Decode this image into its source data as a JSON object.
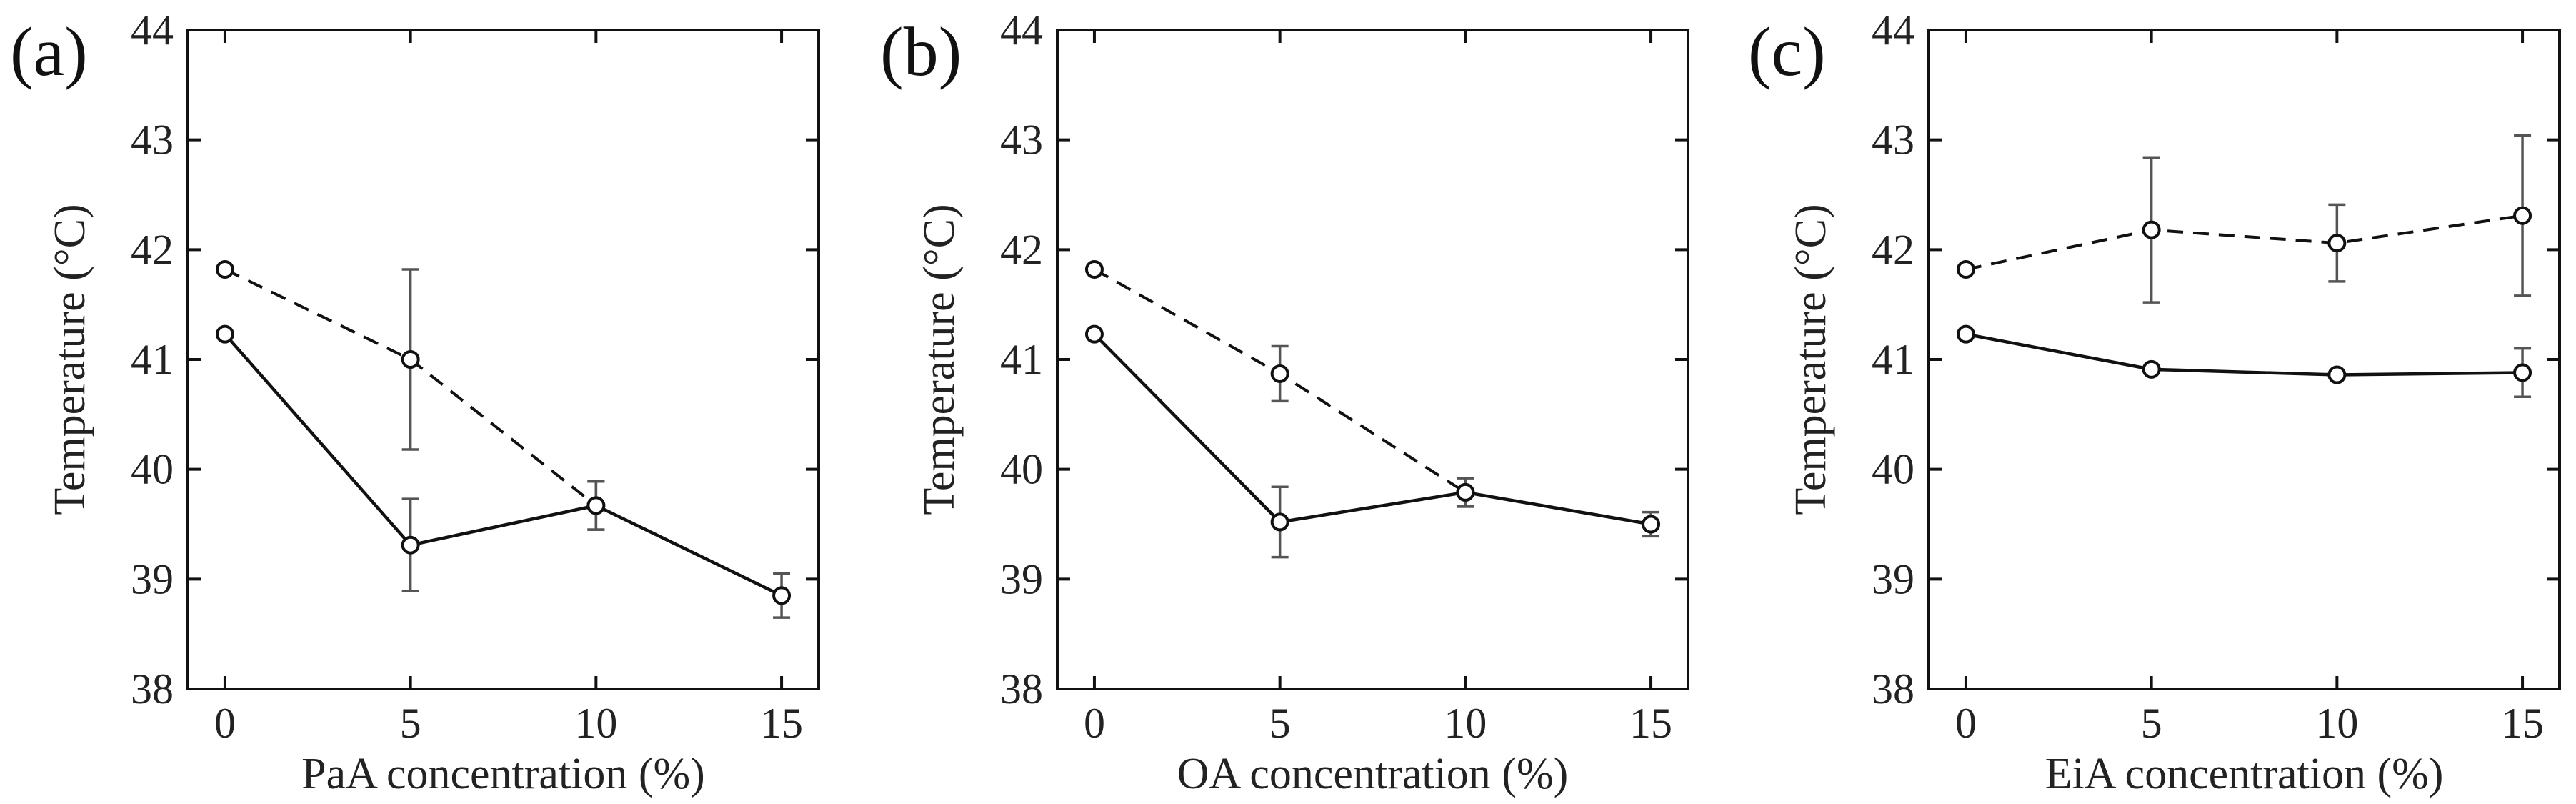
{
  "chart_data": [
    {
      "type": "line",
      "panel_label": "(a)",
      "xlabel": "PaA concentration (%)",
      "ylabel": "Temperature (°C)",
      "xlim": [
        -1,
        16
      ],
      "ylim": [
        38,
        44
      ],
      "xticks": [
        0,
        5,
        10,
        15
      ],
      "yticks": [
        38,
        39,
        40,
        41,
        42,
        43,
        44
      ],
      "x": [
        0,
        5,
        10,
        15
      ],
      "series": [
        {
          "name": "solid",
          "style": "solid",
          "x": [
            0,
            5,
            10,
            15
          ],
          "values": [
            41.23,
            39.31,
            39.67,
            38.85
          ],
          "errors": [
            0.03,
            0.42,
            0.22,
            0.2
          ]
        },
        {
          "name": "dashed",
          "style": "dashed",
          "x": [
            0,
            5,
            10
          ],
          "values": [
            41.82,
            41.0,
            39.67
          ],
          "errors": [
            0.03,
            0.82,
            0.22
          ]
        }
      ]
    },
    {
      "type": "line",
      "panel_label": "(b)",
      "xlabel": "OA concentration (%)",
      "ylabel": "Temperature (°C)",
      "xlim": [
        -1,
        16
      ],
      "ylim": [
        38,
        44
      ],
      "xticks": [
        0,
        5,
        10,
        15
      ],
      "yticks": [
        38,
        39,
        40,
        41,
        42,
        43,
        44
      ],
      "x": [
        0,
        5,
        10,
        15
      ],
      "series": [
        {
          "name": "solid",
          "style": "solid",
          "x": [
            0,
            5,
            10,
            15
          ],
          "values": [
            41.23,
            39.52,
            39.79,
            39.5
          ],
          "errors": [
            0.03,
            0.32,
            0.13,
            0.11
          ]
        },
        {
          "name": "dashed",
          "style": "dashed",
          "x": [
            0,
            5,
            10
          ],
          "values": [
            41.82,
            40.87,
            39.79
          ],
          "errors": [
            0.03,
            0.25,
            0.13
          ]
        }
      ]
    },
    {
      "type": "line",
      "panel_label": "(c)",
      "xlabel": "EiA concentration (%)",
      "ylabel": "Temperature (°C)",
      "xlim": [
        -1,
        16
      ],
      "ylim": [
        38,
        44
      ],
      "xticks": [
        0,
        5,
        10,
        15
      ],
      "yticks": [
        38,
        39,
        40,
        41,
        42,
        43,
        44
      ],
      "x": [
        0,
        5,
        10,
        15
      ],
      "series": [
        {
          "name": "solid",
          "style": "solid",
          "x": [
            0,
            5,
            10,
            15
          ],
          "values": [
            41.23,
            40.91,
            40.86,
            40.88
          ],
          "errors": [
            0.03,
            0.04,
            0.06,
            0.22
          ]
        },
        {
          "name": "dashed",
          "style": "dashed",
          "x": [
            0,
            5,
            10,
            15
          ],
          "values": [
            41.82,
            42.18,
            42.06,
            42.31
          ],
          "errors": [
            0.04,
            0.66,
            0.35,
            0.73
          ]
        }
      ]
    }
  ]
}
